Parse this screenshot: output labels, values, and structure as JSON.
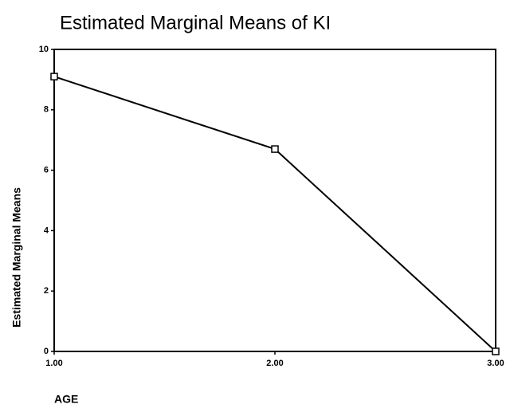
{
  "chart_data": {
    "type": "line",
    "title": "Estimated Marginal Means of KI",
    "x_label": "AGE",
    "y_label": "Estimated Marginal Means",
    "x": [
      1,
      2,
      3
    ],
    "series": [
      {
        "name": "KI",
        "color": "#000000",
        "values": [
          9.1,
          6.7,
          0
        ]
      }
    ],
    "xlim": [
      1,
      3
    ],
    "xticks": [
      {
        "value": 1,
        "label": "1.00"
      },
      {
        "value": 2,
        "label": "2.00"
      },
      {
        "value": 3,
        "label": "3.00"
      }
    ],
    "ylim": [
      0,
      10
    ],
    "yticks": [
      0,
      2,
      4,
      6,
      8,
      10
    ],
    "grid": false
  }
}
